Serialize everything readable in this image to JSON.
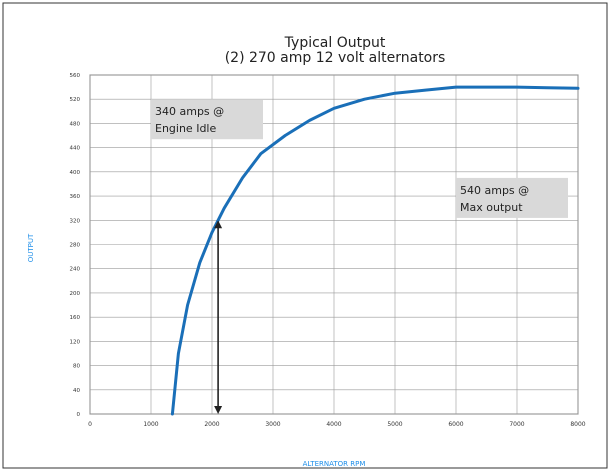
{
  "chart_data": {
    "type": "line",
    "title": "Typical Output",
    "subtitle": "(2) 270 amp 12 volt alternators",
    "xlabel": "ALTERNATOR RPM",
    "ylabel": "OUTPUT",
    "xlim": [
      0,
      8000
    ],
    "ylim": [
      0,
      560
    ],
    "x_ticks": [
      "0",
      "1000",
      "2000",
      "3000",
      "4000",
      "5000",
      "6000",
      "7000",
      "8000"
    ],
    "y_ticks": [
      "0",
      "40",
      "80",
      "120",
      "160",
      "200",
      "240",
      "280",
      "320",
      "360",
      "400",
      "440",
      "480",
      "520",
      "560"
    ],
    "grid": true,
    "series": [
      {
        "color": "#1a6fb8",
        "x": [
          1350,
          1450,
          1600,
          1800,
          2000,
          2200,
          2500,
          2800,
          3200,
          3600,
          4000,
          4500,
          5000,
          5500,
          6000,
          6500,
          7000,
          7500,
          8000
        ],
        "y": [
          0,
          100,
          180,
          250,
          300,
          340,
          390,
          430,
          460,
          485,
          505,
          520,
          530,
          535,
          540,
          540,
          540,
          539,
          538
        ]
      }
    ],
    "annotations": [
      {
        "lines": [
          "340 amps @",
          "Engine Idle"
        ],
        "x": 1000,
        "y": 520
      },
      {
        "lines": [
          "540 amps @",
          "Max output"
        ],
        "x": 6000,
        "y": 390
      }
    ],
    "arrow": {
      "x": 2100,
      "y_start": 320,
      "y_end": 0,
      "color": "#222222"
    }
  }
}
